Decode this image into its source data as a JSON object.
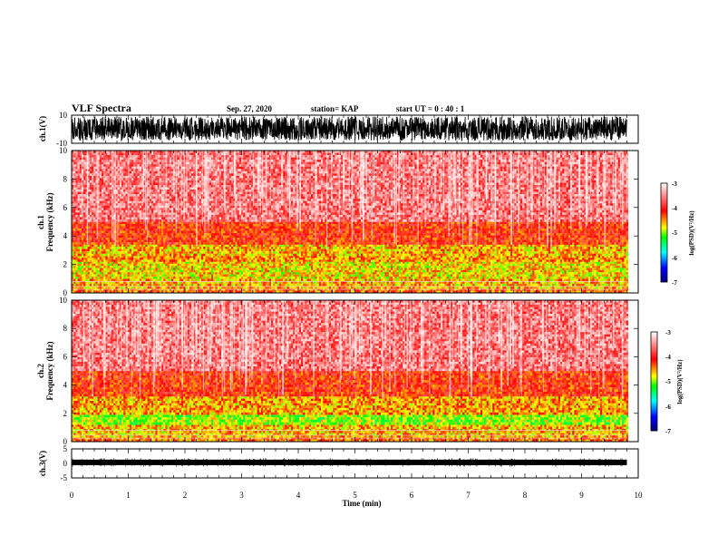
{
  "header": {
    "title": "VLF Spectra",
    "date": "Sep. 27, 2020",
    "station": "station= KAP",
    "start": "start  UT  =   0 : 40 : 1"
  },
  "chart_data": [
    {
      "type": "line",
      "name": "ch1-waveform",
      "ylabel": "ch.1(V)",
      "ylim": [
        -10,
        10
      ],
      "yticks": [
        "10",
        "-10"
      ],
      "xlim": [
        0,
        10
      ],
      "data_extent_min": 9.8,
      "amplitude_note": "dense noise filling roughly -8 to 9 V"
    },
    {
      "type": "heatmap",
      "name": "ch1-spectrogram",
      "ylabel": "ch.1\nFrequency  (kHz)",
      "ylim": [
        0,
        10
      ],
      "yticks": [
        "0",
        "2",
        "4",
        "6",
        "8",
        "10"
      ],
      "xlim": [
        0,
        10
      ],
      "data_extent_min": 9.8,
      "colorbar": {
        "label": "log(PSD)(V²/Hz)",
        "range": [
          -7,
          -3
        ],
        "ticks": [
          "-3",
          "-4",
          "-5",
          "-6",
          "-7"
        ]
      },
      "bands": [
        {
          "f_low": 0.0,
          "f_high": 0.3,
          "level": -4.4
        },
        {
          "f_low": 0.3,
          "f_high": 1.0,
          "level": -4.6
        },
        {
          "f_low": 1.0,
          "f_high": 2.2,
          "level": -4.7
        },
        {
          "f_low": 2.2,
          "f_high": 2.6,
          "level": -4.5
        },
        {
          "f_low": 2.6,
          "f_high": 3.4,
          "level": -4.6
        },
        {
          "f_low": 3.4,
          "f_high": 5.0,
          "level": -4.15
        },
        {
          "f_low": 5.0,
          "f_high": 10.0,
          "level": -3.6
        }
      ]
    },
    {
      "type": "heatmap",
      "name": "ch2-spectrogram",
      "ylabel": "ch.2\nFrequency  (kHz)",
      "ylim": [
        0,
        10
      ],
      "yticks": [
        "0",
        "2",
        "4",
        "6",
        "8",
        "10"
      ],
      "xlim": [
        0,
        10
      ],
      "data_extent_min": 9.8,
      "colorbar": {
        "label": "log(PSD)(V²/Hz)",
        "range": [
          -7,
          -3
        ],
        "ticks": [
          "-3",
          "-4",
          "-5",
          "-6",
          "-7"
        ]
      },
      "bands": [
        {
          "f_low": 0.0,
          "f_high": 0.3,
          "level": -4.4
        },
        {
          "f_low": 0.3,
          "f_high": 1.2,
          "level": -4.6
        },
        {
          "f_low": 1.2,
          "f_high": 1.9,
          "level": -5.0
        },
        {
          "f_low": 1.9,
          "f_high": 3.2,
          "level": -4.55
        },
        {
          "f_low": 3.2,
          "f_high": 5.0,
          "level": -4.15
        },
        {
          "f_low": 5.0,
          "f_high": 10.0,
          "level": -3.6
        }
      ]
    },
    {
      "type": "line",
      "name": "ch3-waveform",
      "ylabel": "ch.3(V)",
      "ylim": [
        -5,
        5
      ],
      "yticks": [
        "5",
        "0",
        "-5"
      ],
      "xlim": [
        0,
        10
      ],
      "data_extent_min": 9.8,
      "amplitude_note": "narrow band around 0 V"
    }
  ],
  "xaxis": {
    "label": "Time  (min)",
    "ticks": [
      "0",
      "1",
      "2",
      "3",
      "4",
      "5",
      "6",
      "7",
      "8",
      "9",
      "10"
    ]
  },
  "colors": {
    "colormap": [
      "#000080",
      "#0000ff",
      "#00ffff",
      "#00ff00",
      "#ffff00",
      "#ff0000",
      "#ffffff"
    ]
  }
}
